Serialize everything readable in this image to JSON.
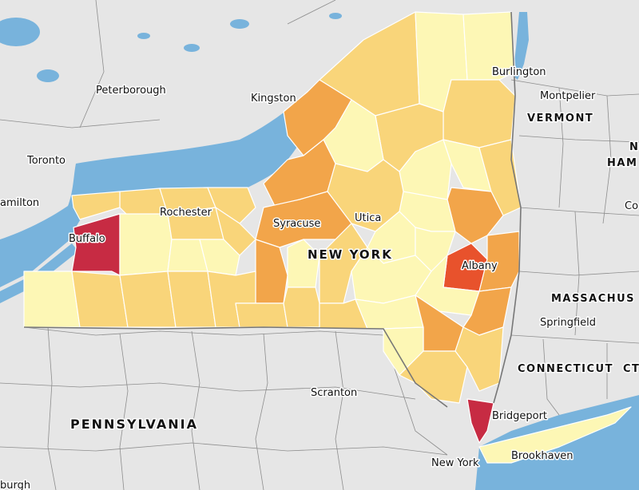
{
  "map": {
    "colors": {
      "level1": "#fdf7b5",
      "level2": "#f9d57a",
      "level3": "#f2a54a",
      "level4": "#e8522c",
      "level5": "#c72b43",
      "water": "#78b3dc",
      "land": "#e6e6e6"
    },
    "labels": {
      "peterborough": "Peterborough",
      "kingston": "Kingston",
      "burlington": "Burlington",
      "montpelier": "Montpelier",
      "vermont": "VERMONT",
      "toronto": "Toronto",
      "hamilton": "amilton",
      "rochester": "Rochester",
      "buffalo": "Buffalo",
      "syracuse": "Syracuse",
      "utica": "Utica",
      "new_york_state": "NEW YORK",
      "albany": "Albany",
      "massachusetts": "MASSACHUS",
      "springfield": "Springfield",
      "connecticut": "CONNECTICUT",
      "scranton": "Scranton",
      "pennsylvania": "PENNSYLVANIA",
      "bridgeport": "Bridgeport",
      "new_york_city": "New York",
      "brookhaven": "Brookhaven",
      "edge_n": "N",
      "edge_ham": "HAM",
      "edge_co": "Co",
      "edge_ct": "CT",
      "edge_burgh": "burgh"
    }
  }
}
